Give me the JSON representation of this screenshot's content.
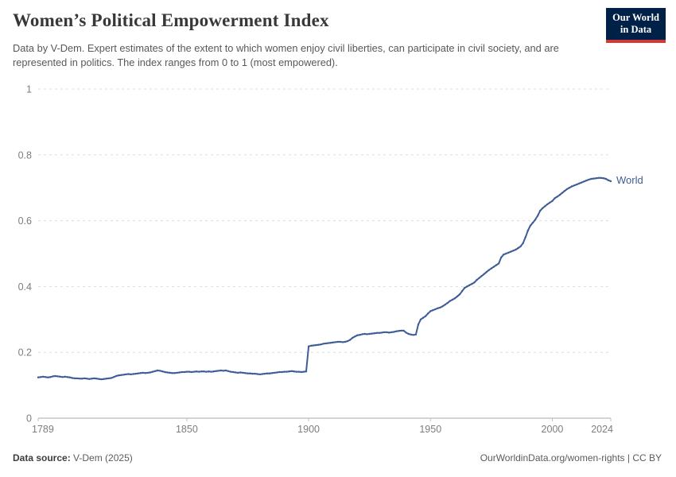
{
  "header": {
    "title": "Women’s Political Empowerment Index",
    "subtitle": "Data by V-Dem. Expert estimates of the extent to which women enjoy civil liberties, can participate in civil society, and are represented in politics. The index ranges from 0 to 1 (most empowered)."
  },
  "logo": {
    "line1": "Our World",
    "line2": "in Data",
    "bg_color": "#002147",
    "bar_color": "#cf3b3b"
  },
  "footer": {
    "source_label": "Data source:",
    "source_value": "V-Dem (2025)",
    "credit": "OurWorldinData.org/women-rights | CC BY"
  },
  "chart_data": {
    "type": "line",
    "title": "Women’s Political Empowerment Index",
    "xlabel": "",
    "ylabel": "",
    "xlim": [
      1789,
      2024
    ],
    "ylim": [
      0,
      1
    ],
    "x_ticks": [
      1789,
      1850,
      1900,
      1950,
      2000,
      2024
    ],
    "y_ticks": [
      0,
      0.2,
      0.4,
      0.6,
      0.8,
      1
    ],
    "grid": "horizontal-dashed",
    "legend_position": "end-of-line",
    "line_color": "#3e5c96",
    "axis_color": "#a9a9a9",
    "grid_color": "#dcdcdc",
    "tick_label_color": "#7d7d7d",
    "series": [
      {
        "name": "World",
        "points": [
          [
            1789,
            0.124
          ],
          [
            1790,
            0.125
          ],
          [
            1791,
            0.126
          ],
          [
            1792,
            0.125
          ],
          [
            1793,
            0.124
          ],
          [
            1794,
            0.125
          ],
          [
            1795,
            0.127
          ],
          [
            1796,
            0.128
          ],
          [
            1797,
            0.127
          ],
          [
            1798,
            0.126
          ],
          [
            1799,
            0.125
          ],
          [
            1800,
            0.126
          ],
          [
            1801,
            0.125
          ],
          [
            1802,
            0.124
          ],
          [
            1803,
            0.122
          ],
          [
            1804,
            0.121
          ],
          [
            1805,
            0.121
          ],
          [
            1806,
            0.12
          ],
          [
            1807,
            0.12
          ],
          [
            1808,
            0.121
          ],
          [
            1809,
            0.12
          ],
          [
            1810,
            0.119
          ],
          [
            1811,
            0.12
          ],
          [
            1812,
            0.121
          ],
          [
            1813,
            0.12
          ],
          [
            1814,
            0.119
          ],
          [
            1815,
            0.118
          ],
          [
            1816,
            0.119
          ],
          [
            1817,
            0.12
          ],
          [
            1818,
            0.121
          ],
          [
            1819,
            0.122
          ],
          [
            1820,
            0.125
          ],
          [
            1821,
            0.128
          ],
          [
            1822,
            0.13
          ],
          [
            1823,
            0.131
          ],
          [
            1824,
            0.132
          ],
          [
            1825,
            0.133
          ],
          [
            1826,
            0.134
          ],
          [
            1827,
            0.133
          ],
          [
            1828,
            0.134
          ],
          [
            1829,
            0.135
          ],
          [
            1830,
            0.136
          ],
          [
            1831,
            0.137
          ],
          [
            1832,
            0.138
          ],
          [
            1833,
            0.137
          ],
          [
            1834,
            0.138
          ],
          [
            1835,
            0.139
          ],
          [
            1836,
            0.141
          ],
          [
            1837,
            0.143
          ],
          [
            1838,
            0.145
          ],
          [
            1839,
            0.144
          ],
          [
            1840,
            0.142
          ],
          [
            1841,
            0.14
          ],
          [
            1842,
            0.139
          ],
          [
            1843,
            0.138
          ],
          [
            1844,
            0.137
          ],
          [
            1845,
            0.137
          ],
          [
            1846,
            0.138
          ],
          [
            1847,
            0.139
          ],
          [
            1848,
            0.14
          ],
          [
            1849,
            0.14
          ],
          [
            1850,
            0.141
          ],
          [
            1851,
            0.141
          ],
          [
            1852,
            0.14
          ],
          [
            1853,
            0.141
          ],
          [
            1854,
            0.142
          ],
          [
            1855,
            0.141
          ],
          [
            1856,
            0.142
          ],
          [
            1857,
            0.142
          ],
          [
            1858,
            0.141
          ],
          [
            1859,
            0.142
          ],
          [
            1860,
            0.141
          ],
          [
            1861,
            0.142
          ],
          [
            1862,
            0.143
          ],
          [
            1863,
            0.144
          ],
          [
            1864,
            0.145
          ],
          [
            1865,
            0.144
          ],
          [
            1866,
            0.145
          ],
          [
            1867,
            0.143
          ],
          [
            1868,
            0.141
          ],
          [
            1869,
            0.14
          ],
          [
            1870,
            0.139
          ],
          [
            1871,
            0.138
          ],
          [
            1872,
            0.139
          ],
          [
            1873,
            0.138
          ],
          [
            1874,
            0.137
          ],
          [
            1875,
            0.136
          ],
          [
            1876,
            0.136
          ],
          [
            1877,
            0.135
          ],
          [
            1878,
            0.135
          ],
          [
            1879,
            0.134
          ],
          [
            1880,
            0.133
          ],
          [
            1881,
            0.134
          ],
          [
            1882,
            0.135
          ],
          [
            1883,
            0.136
          ],
          [
            1884,
            0.136
          ],
          [
            1885,
            0.137
          ],
          [
            1886,
            0.138
          ],
          [
            1887,
            0.139
          ],
          [
            1888,
            0.14
          ],
          [
            1889,
            0.14
          ],
          [
            1890,
            0.141
          ],
          [
            1891,
            0.141
          ],
          [
            1892,
            0.142
          ],
          [
            1893,
            0.143
          ],
          [
            1894,
            0.142
          ],
          [
            1895,
            0.141
          ],
          [
            1896,
            0.141
          ],
          [
            1897,
            0.14
          ],
          [
            1898,
            0.141
          ],
          [
            1899,
            0.142
          ],
          [
            1900,
            0.218
          ],
          [
            1901,
            0.22
          ],
          [
            1902,
            0.221
          ],
          [
            1903,
            0.222
          ],
          [
            1904,
            0.223
          ],
          [
            1905,
            0.224
          ],
          [
            1906,
            0.226
          ],
          [
            1907,
            0.227
          ],
          [
            1908,
            0.228
          ],
          [
            1909,
            0.229
          ],
          [
            1910,
            0.23
          ],
          [
            1911,
            0.231
          ],
          [
            1912,
            0.232
          ],
          [
            1913,
            0.232
          ],
          [
            1914,
            0.231
          ],
          [
            1915,
            0.232
          ],
          [
            1916,
            0.234
          ],
          [
            1917,
            0.238
          ],
          [
            1918,
            0.244
          ],
          [
            1919,
            0.248
          ],
          [
            1920,
            0.252
          ],
          [
            1921,
            0.253
          ],
          [
            1922,
            0.255
          ],
          [
            1923,
            0.256
          ],
          [
            1924,
            0.255
          ],
          [
            1925,
            0.256
          ],
          [
            1926,
            0.257
          ],
          [
            1927,
            0.258
          ],
          [
            1928,
            0.259
          ],
          [
            1929,
            0.259
          ],
          [
            1930,
            0.26
          ],
          [
            1931,
            0.261
          ],
          [
            1932,
            0.261
          ],
          [
            1933,
            0.26
          ],
          [
            1934,
            0.261
          ],
          [
            1935,
            0.262
          ],
          [
            1936,
            0.264
          ],
          [
            1937,
            0.265
          ],
          [
            1938,
            0.266
          ],
          [
            1939,
            0.266
          ],
          [
            1940,
            0.26
          ],
          [
            1941,
            0.256
          ],
          [
            1942,
            0.254
          ],
          [
            1943,
            0.253
          ],
          [
            1944,
            0.254
          ],
          [
            1945,
            0.285
          ],
          [
            1946,
            0.3
          ],
          [
            1947,
            0.305
          ],
          [
            1948,
            0.31
          ],
          [
            1949,
            0.318
          ],
          [
            1950,
            0.325
          ],
          [
            1951,
            0.328
          ],
          [
            1952,
            0.331
          ],
          [
            1953,
            0.334
          ],
          [
            1954,
            0.336
          ],
          [
            1955,
            0.34
          ],
          [
            1956,
            0.345
          ],
          [
            1957,
            0.35
          ],
          [
            1958,
            0.356
          ],
          [
            1959,
            0.36
          ],
          [
            1960,
            0.364
          ],
          [
            1961,
            0.37
          ],
          [
            1962,
            0.376
          ],
          [
            1963,
            0.386
          ],
          [
            1964,
            0.396
          ],
          [
            1965,
            0.4
          ],
          [
            1966,
            0.404
          ],
          [
            1967,
            0.408
          ],
          [
            1968,
            0.412
          ],
          [
            1969,
            0.42
          ],
          [
            1970,
            0.426
          ],
          [
            1971,
            0.432
          ],
          [
            1972,
            0.438
          ],
          [
            1973,
            0.444
          ],
          [
            1974,
            0.45
          ],
          [
            1975,
            0.455
          ],
          [
            1976,
            0.46
          ],
          [
            1977,
            0.465
          ],
          [
            1978,
            0.47
          ],
          [
            1979,
            0.488
          ],
          [
            1980,
            0.497
          ],
          [
            1981,
            0.5
          ],
          [
            1982,
            0.503
          ],
          [
            1983,
            0.506
          ],
          [
            1984,
            0.509
          ],
          [
            1985,
            0.512
          ],
          [
            1986,
            0.517
          ],
          [
            1987,
            0.522
          ],
          [
            1988,
            0.532
          ],
          [
            1989,
            0.55
          ],
          [
            1990,
            0.57
          ],
          [
            1991,
            0.585
          ],
          [
            1992,
            0.594
          ],
          [
            1993,
            0.603
          ],
          [
            1994,
            0.615
          ],
          [
            1995,
            0.63
          ],
          [
            1996,
            0.638
          ],
          [
            1997,
            0.644
          ],
          [
            1998,
            0.65
          ],
          [
            1999,
            0.655
          ],
          [
            2000,
            0.66
          ],
          [
            2001,
            0.668
          ],
          [
            2002,
            0.673
          ],
          [
            2003,
            0.678
          ],
          [
            2004,
            0.684
          ],
          [
            2005,
            0.69
          ],
          [
            2006,
            0.696
          ],
          [
            2007,
            0.7
          ],
          [
            2008,
            0.704
          ],
          [
            2009,
            0.707
          ],
          [
            2010,
            0.71
          ],
          [
            2011,
            0.713
          ],
          [
            2012,
            0.716
          ],
          [
            2013,
            0.719
          ],
          [
            2014,
            0.722
          ],
          [
            2015,
            0.725
          ],
          [
            2016,
            0.727
          ],
          [
            2017,
            0.728
          ],
          [
            2018,
            0.729
          ],
          [
            2019,
            0.73
          ],
          [
            2020,
            0.73
          ],
          [
            2021,
            0.729
          ],
          [
            2022,
            0.727
          ],
          [
            2023,
            0.723
          ],
          [
            2024,
            0.72
          ]
        ]
      }
    ]
  }
}
